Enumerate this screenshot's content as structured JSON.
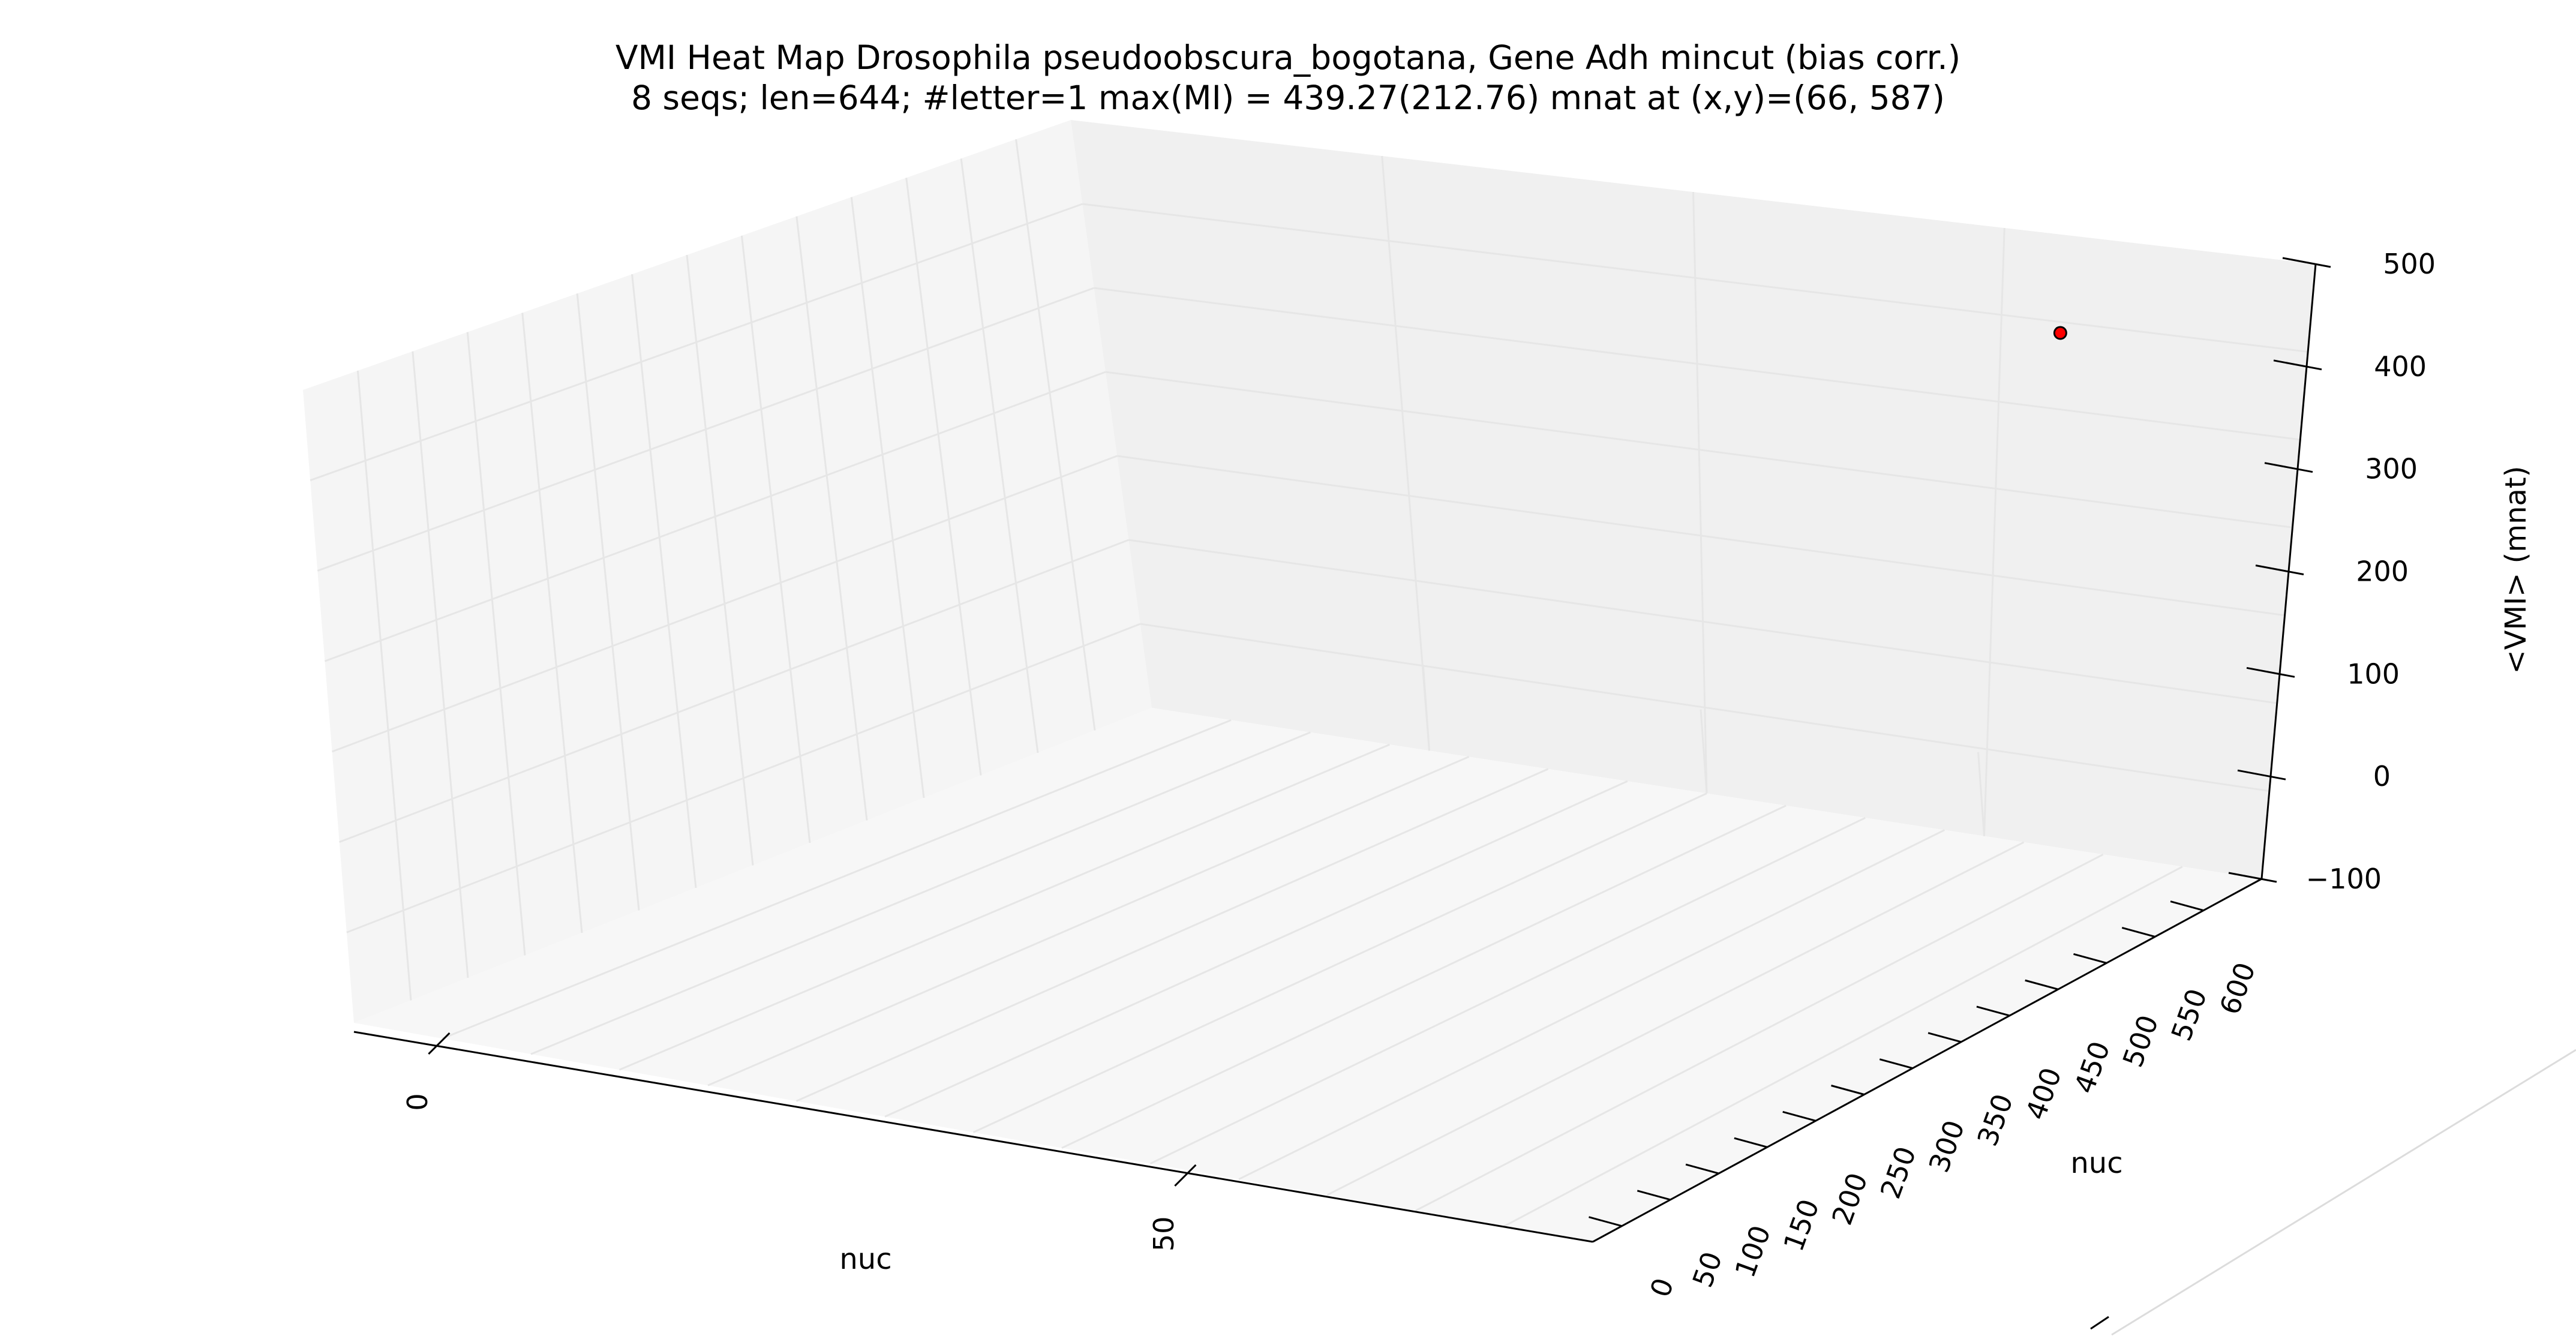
{
  "chart_data": {
    "type": "scatter",
    "title": "VMI Heat Map Drosophila pseudoobscura_bogotana, Gene Adh mincut (bias corr.)",
    "subtitle": "8 seqs; len=644; #letter=1 max(MI) = 439.27(212.76) mnat at (x,y)=(66, 587)",
    "xlabel": "nuc",
    "ylabel": "nuc",
    "zlabel": "<VMI> (mnat)",
    "xlim": [
      -5,
      78
    ],
    "ylim": [
      -30,
      660
    ],
    "zlim": [
      -100,
      500
    ],
    "x_ticks": [
      "0",
      "50"
    ],
    "y_ticks": [
      "0",
      "50",
      "100",
      "150",
      "200",
      "250",
      "300",
      "350",
      "400",
      "450",
      "500",
      "550",
      "600"
    ],
    "z_ticks": [
      "500",
      "400",
      "300",
      "200",
      "100",
      "0",
      "−100"
    ],
    "grid": true,
    "points": [
      {
        "x": 66,
        "y": 587,
        "z": 439.27
      }
    ],
    "colors": {
      "pane_left": "#f5f5f5",
      "pane_back": "#f0f0f0",
      "pane_floor": "#f7f7f7",
      "grid": "#e6e6e6",
      "point_fill": "#ff0000",
      "point_edge": "#000000"
    }
  }
}
